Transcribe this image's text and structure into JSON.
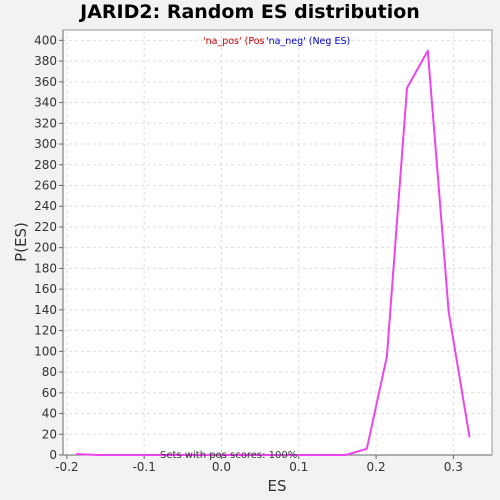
{
  "chart_data": {
    "type": "line",
    "title": "JARID2: Random ES distribution",
    "xlabel": "ES",
    "ylabel": "P(ES)",
    "xlim": [
      -0.205,
      0.35
    ],
    "ylim": [
      0,
      410
    ],
    "x_ticks": [
      -0.2,
      -0.1,
      0.0,
      0.1,
      0.2,
      0.3
    ],
    "x_tick_labels": [
      "-0.2",
      "-0.1",
      "0.0",
      "0.1",
      "0.2",
      "0.3"
    ],
    "y_ticks": [
      0,
      20,
      40,
      60,
      80,
      100,
      120,
      140,
      160,
      180,
      200,
      220,
      240,
      260,
      280,
      300,
      320,
      340,
      360,
      380,
      400
    ],
    "grid": true,
    "legend_placement": "top-center",
    "legend": [
      {
        "label": "'na_pos' (Pos",
        "color": "#cc0000"
      },
      {
        "label": "'na_neg' (Neg ES)",
        "color": "#0000cc"
      }
    ],
    "annotation": "Sets with pos scores: 100%",
    "series": [
      {
        "color": "#ee44ee",
        "x": [
          -0.188,
          -0.16,
          -0.134,
          -0.107,
          -0.08,
          -0.053,
          -0.027,
          0.0,
          0.027,
          0.054,
          0.081,
          0.107,
          0.134,
          0.161,
          0.188,
          0.214,
          0.24,
          0.267,
          0.294,
          0.321
        ],
        "y": [
          1,
          0,
          0,
          0,
          0,
          0,
          0,
          0,
          0,
          0,
          0,
          0,
          0,
          0,
          6,
          95,
          354,
          390,
          138,
          17
        ]
      }
    ]
  }
}
